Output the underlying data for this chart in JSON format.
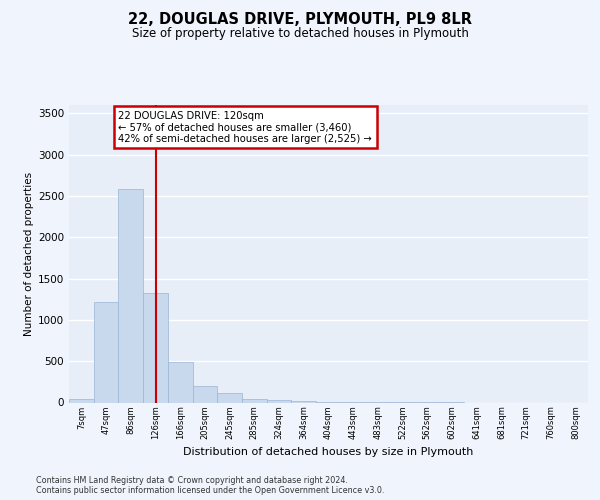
{
  "title": "22, DOUGLAS DRIVE, PLYMOUTH, PL9 8LR",
  "subtitle": "Size of property relative to detached houses in Plymouth",
  "xlabel": "Distribution of detached houses by size in Plymouth",
  "ylabel": "Number of detached properties",
  "bar_color": "#c8d9ee",
  "bar_edge_color": "#9ab5d5",
  "background_color": "#e8eef8",
  "grid_color": "#ffffff",
  "vline_color": "#cc0000",
  "vline_x_index": 3,
  "annotation_text_line1": "22 DOUGLAS DRIVE: 120sqm",
  "annotation_text_line2": "← 57% of detached houses are smaller (3,460)",
  "annotation_text_line3": "42% of semi-detached houses are larger (2,525) →",
  "categories": [
    "7sqm",
    "47sqm",
    "86sqm",
    "126sqm",
    "166sqm",
    "205sqm",
    "245sqm",
    "285sqm",
    "324sqm",
    "364sqm",
    "404sqm",
    "443sqm",
    "483sqm",
    "522sqm",
    "562sqm",
    "602sqm",
    "641sqm",
    "681sqm",
    "721sqm",
    "760sqm",
    "800sqm"
  ],
  "values": [
    45,
    1220,
    2580,
    1330,
    490,
    200,
    110,
    45,
    28,
    14,
    8,
    5,
    3,
    2,
    1,
    1,
    0,
    0,
    0,
    0,
    0
  ],
  "ylim": [
    0,
    3600
  ],
  "yticks": [
    0,
    500,
    1000,
    1500,
    2000,
    2500,
    3000,
    3500
  ],
  "fig_width": 6.0,
  "fig_height": 5.0,
  "dpi": 100,
  "footnote1": "Contains HM Land Registry data © Crown copyright and database right 2024.",
  "footnote2": "Contains public sector information licensed under the Open Government Licence v3.0."
}
